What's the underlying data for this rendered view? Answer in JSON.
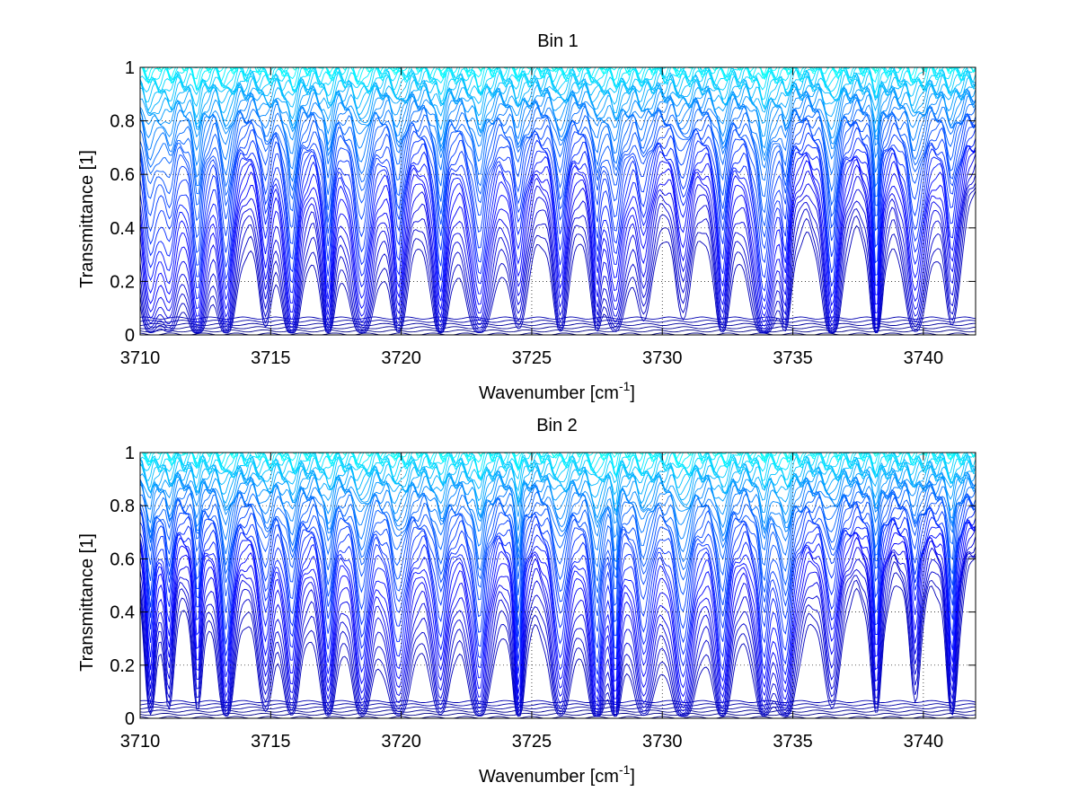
{
  "chart_data": [
    {
      "type": "line",
      "title": "Bin 1",
      "xlabel": "Wavenumber [cm",
      "xlabel_sup": "-1",
      "xlabel_end": "]",
      "ylabel": "Transmittance [1]",
      "xlim": [
        3710,
        3742
      ],
      "ylim": [
        0,
        1
      ],
      "xticks": [
        3710,
        3715,
        3720,
        3725,
        3730,
        3735,
        3740
      ],
      "xtick_labels": [
        "3710",
        "3715",
        "3720",
        "3725",
        "3730",
        "3735",
        "3740"
      ],
      "yticks": [
        0,
        0.2,
        0.4,
        0.6,
        0.8,
        1
      ],
      "ytick_labels": [
        "0",
        "0.2",
        "0.4",
        "0.6",
        "0.8",
        "1"
      ],
      "grid": "dotted",
      "legend": "none",
      "colormap": "jet (dark red low → orange/yellow → cyan/blue high)",
      "n_series": 48,
      "absorption_lines_cm-1": [
        3710.4,
        3711.1,
        3712.2,
        3713.3,
        3714.8,
        3715.8,
        3717.2,
        3718.5,
        3719.9,
        3721.5,
        3723.0,
        3724.5,
        3726.1,
        3727.5,
        3728.2,
        3729.3,
        3730.8,
        3732.3,
        3733.9,
        3734.7,
        3736.5,
        3738.2,
        3739.7,
        3741.1
      ],
      "series_continuum_min_transmittance": 0.0,
      "series_continuum_max_transmittance": 1.0
    },
    {
      "type": "line",
      "title": "Bin 2",
      "xlabel": "Wavenumber [cm",
      "xlabel_sup": "-1",
      "xlabel_end": "]",
      "ylabel": "Transmittance [1]",
      "xlim": [
        3710,
        3742
      ],
      "ylim": [
        0,
        1
      ],
      "xticks": [
        3710,
        3715,
        3720,
        3725,
        3730,
        3735,
        3740
      ],
      "xtick_labels": [
        "3710",
        "3715",
        "3720",
        "3725",
        "3730",
        "3735",
        "3740"
      ],
      "yticks": [
        0,
        0.2,
        0.4,
        0.6,
        0.8,
        1
      ],
      "ytick_labels": [
        "0",
        "0.2",
        "0.4",
        "0.6",
        "0.8",
        "1"
      ],
      "grid": "dotted",
      "legend": "none",
      "colormap": "jet (dark red low → orange/yellow → cyan/blue high)",
      "n_series": 48,
      "absorption_lines_cm-1": [
        3710.4,
        3711.1,
        3712.2,
        3713.3,
        3714.8,
        3715.8,
        3717.2,
        3718.5,
        3719.9,
        3721.5,
        3723.0,
        3724.5,
        3726.1,
        3727.5,
        3728.2,
        3729.3,
        3730.8,
        3732.3,
        3733.9,
        3734.7,
        3736.5,
        3738.2,
        3739.7,
        3741.1
      ],
      "series_continuum_min_transmittance": 0.0,
      "series_continuum_max_transmittance": 1.0
    }
  ]
}
